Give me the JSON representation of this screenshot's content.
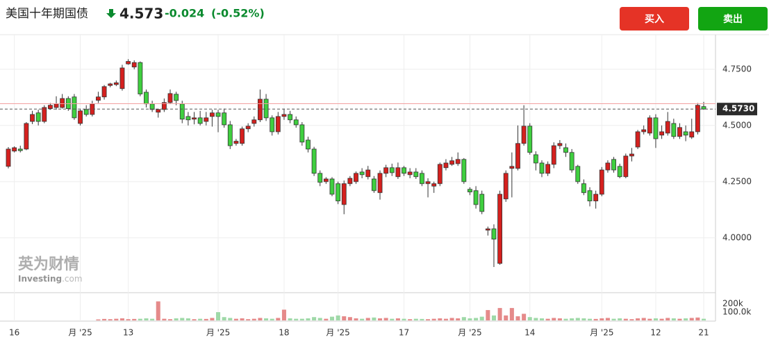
{
  "header": {
    "title": "美国十年期国债",
    "price": "4.573",
    "change": "-0.024",
    "change_pct": "(-0.52%)"
  },
  "buttons": {
    "buy": "买入",
    "sell": "卖出"
  },
  "watermark": {
    "cn": "英为财情",
    "en": "Investing",
    "domain": ".com"
  },
  "chart_data": {
    "type": "candlestick",
    "up_color": "#d5201e",
    "down_color": "#3fcf3f",
    "grid": true,
    "categories": [
      null,
      "16",
      null,
      null,
      null,
      null,
      null,
      null,
      null,
      null,
      null,
      null,
      "月 '25",
      null,
      null,
      null,
      null,
      null,
      null,
      null,
      "13",
      null,
      null,
      null,
      null,
      null,
      null,
      null,
      null,
      null,
      null,
      null,
      null,
      null,
      null,
      "月 '25",
      null,
      null,
      null,
      null,
      null,
      null,
      null,
      null,
      null,
      null,
      "18",
      null,
      null,
      null,
      null,
      null,
      null,
      null,
      null,
      "月 '25",
      null,
      null,
      null,
      null,
      null,
      null,
      null,
      null,
      null,
      null,
      "17",
      null,
      null,
      null,
      null,
      null,
      null,
      null,
      null,
      null,
      null,
      "月 '25",
      null,
      null,
      null,
      null,
      null,
      null,
      null,
      null,
      null,
      "14",
      null,
      null,
      null,
      null,
      null,
      null,
      null,
      null,
      null,
      null,
      null,
      "月 '25",
      null,
      null,
      null,
      null,
      null,
      null,
      null,
      null,
      "12",
      null,
      null,
      null,
      null,
      null,
      null,
      null,
      "21"
    ],
    "open": [
      4.318,
      4.386,
      4.395,
      4.395,
      4.518,
      4.556,
      4.518,
      4.575,
      4.58,
      4.58,
      4.62,
      4.627,
      4.509,
      4.571,
      4.549,
      4.612,
      4.627,
      4.678,
      4.682,
      4.664,
      4.774,
      4.76,
      4.78,
      4.648,
      4.596,
      4.559,
      4.571,
      4.602,
      4.639,
      4.596,
      4.54,
      4.528,
      4.534,
      4.518,
      4.54,
      4.556,
      4.556,
      4.503,
      4.42,
      4.42,
      4.485,
      4.509,
      4.525,
      4.617,
      4.534,
      4.472,
      4.54,
      4.549,
      4.525,
      4.503,
      4.435,
      4.395,
      4.287,
      4.25,
      4.262,
      4.241,
      4.148,
      4.241,
      4.25,
      4.293,
      4.272,
      4.262,
      4.201,
      4.287,
      4.312,
      4.272,
      4.312,
      4.281,
      4.293,
      4.287,
      4.241,
      4.23,
      4.241,
      4.312,
      4.327,
      4.33,
      4.349,
      4.216,
      4.21,
      4.194,
      4.034,
      4.04,
      3.886,
      4.173,
      4.309,
      4.309,
      4.42,
      4.497,
      4.37,
      4.333,
      4.287,
      4.327,
      4.41,
      4.401,
      4.38,
      4.318,
      4.241,
      4.21,
      4.164,
      4.194,
      4.302,
      4.349,
      4.318,
      4.272,
      4.364,
      4.404,
      4.472,
      4.466,
      4.534,
      4.457,
      4.466,
      4.509,
      4.451,
      4.472,
      4.448,
      4.472,
      4.584
    ],
    "high": [
      4.404,
      4.407,
      4.41,
      4.515,
      4.565,
      4.57,
      4.59,
      4.6,
      4.63,
      4.64,
      4.63,
      4.64,
      4.575,
      4.59,
      4.61,
      4.65,
      4.68,
      4.69,
      4.7,
      4.77,
      4.795,
      4.79,
      4.785,
      4.66,
      4.61,
      4.575,
      4.62,
      4.66,
      4.65,
      4.61,
      4.56,
      4.56,
      4.565,
      4.56,
      4.57,
      4.57,
      4.575,
      4.52,
      4.44,
      4.495,
      4.51,
      4.54,
      4.66,
      4.64,
      4.545,
      4.56,
      4.575,
      4.565,
      4.54,
      4.515,
      4.45,
      4.405,
      4.3,
      4.27,
      4.27,
      4.25,
      4.255,
      4.275,
      4.295,
      4.31,
      4.32,
      4.275,
      4.3,
      4.325,
      4.33,
      4.335,
      4.32,
      4.31,
      4.31,
      4.3,
      4.265,
      4.25,
      4.335,
      4.35,
      4.36,
      4.38,
      4.355,
      4.225,
      4.23,
      4.21,
      4.05,
      4.06,
      4.21,
      4.3,
      4.38,
      4.5,
      4.59,
      4.51,
      4.385,
      4.345,
      4.34,
      4.425,
      4.435,
      4.42,
      4.395,
      4.325,
      4.26,
      4.225,
      4.21,
      4.315,
      4.345,
      4.36,
      4.33,
      4.375,
      4.4,
      4.48,
      4.5,
      4.545,
      4.55,
      4.5,
      4.56,
      4.53,
      4.51,
      4.5,
      4.53,
      4.6,
      4.605
    ],
    "low": [
      4.309,
      4.38,
      4.38,
      4.39,
      4.506,
      4.5,
      4.51,
      4.57,
      4.57,
      4.575,
      4.565,
      4.525,
      4.5,
      4.54,
      4.54,
      4.6,
      4.615,
      4.67,
      4.675,
      4.655,
      4.77,
      4.75,
      4.63,
      4.58,
      4.56,
      4.535,
      4.56,
      4.595,
      4.59,
      4.51,
      4.5,
      4.505,
      4.5,
      4.5,
      4.495,
      4.47,
      4.49,
      4.395,
      4.41,
      4.41,
      4.47,
      4.495,
      4.515,
      4.52,
      4.455,
      4.46,
      4.525,
      4.51,
      4.49,
      4.41,
      4.38,
      4.275,
      4.23,
      4.24,
      4.185,
      4.15,
      4.105,
      4.23,
      4.24,
      4.265,
      4.26,
      4.2,
      4.17,
      4.27,
      4.275,
      4.262,
      4.275,
      4.265,
      4.262,
      4.23,
      4.18,
      4.2,
      4.23,
      4.3,
      4.32,
      4.32,
      4.24,
      4.19,
      4.13,
      4.105,
      4.01,
      3.87,
      3.88,
      4.16,
      4.18,
      4.3,
      4.41,
      4.37,
      4.3,
      4.27,
      4.275,
      4.31,
      4.395,
      4.36,
      4.29,
      4.24,
      4.19,
      4.14,
      4.13,
      4.185,
      4.29,
      4.29,
      4.265,
      4.265,
      4.34,
      4.395,
      4.46,
      4.455,
      4.4,
      4.44,
      4.455,
      4.44,
      4.44,
      4.43,
      4.44,
      4.46,
      4.57
    ],
    "close": [
      4.395,
      4.401,
      4.388,
      4.509,
      4.549,
      4.518,
      4.58,
      4.59,
      4.596,
      4.62,
      4.575,
      4.534,
      4.565,
      4.549,
      4.596,
      4.627,
      4.673,
      4.685,
      4.69,
      4.756,
      4.785,
      4.78,
      4.64,
      4.596,
      4.571,
      4.571,
      4.602,
      4.642,
      4.611,
      4.528,
      4.525,
      4.534,
      4.509,
      4.534,
      4.556,
      4.54,
      4.503,
      4.41,
      4.43,
      4.485,
      4.497,
      4.525,
      4.617,
      4.534,
      4.472,
      4.54,
      4.549,
      4.525,
      4.503,
      4.426,
      4.395,
      4.287,
      4.247,
      4.262,
      4.194,
      4.164,
      4.241,
      4.265,
      4.287,
      4.281,
      4.302,
      4.21,
      4.287,
      4.312,
      4.29,
      4.312,
      4.287,
      4.293,
      4.272,
      4.241,
      4.25,
      4.241,
      4.327,
      4.333,
      4.343,
      4.349,
      4.25,
      4.204,
      4.148,
      4.117,
      4.04,
      3.994,
      4.194,
      4.287,
      4.318,
      4.42,
      4.497,
      4.38,
      4.333,
      4.287,
      4.327,
      4.41,
      4.42,
      4.38,
      4.302,
      4.25,
      4.201,
      4.164,
      4.194,
      4.302,
      4.333,
      4.302,
      4.272,
      4.364,
      4.373,
      4.472,
      4.481,
      4.534,
      4.441,
      4.472,
      4.518,
      4.451,
      4.491,
      4.457,
      4.472,
      4.59,
      4.573
    ],
    "ylim": [
      3.762,
      4.904
    ],
    "yticks": [
      {
        "value": 4.0,
        "label": "4.0000"
      },
      {
        "value": 4.25,
        "label": "4.2500"
      },
      {
        "value": 4.5,
        "label": "4.5000"
      },
      {
        "value": 4.75,
        "label": "4.7500"
      }
    ],
    "current_price": {
      "value": 4.573,
      "label": "4.5730"
    },
    "previous_close": 4.597,
    "volume": {
      "up_color": "#e58a8a",
      "down_color": "#9fd9a8",
      "ylim": [
        0,
        310000
      ],
      "yticks": [
        {
          "value": 100000,
          "label": "100.0k"
        },
        {
          "value": 200000,
          "label": "200k"
        }
      ],
      "values": [
        null,
        null,
        null,
        null,
        null,
        null,
        null,
        null,
        null,
        null,
        null,
        null,
        null,
        null,
        null,
        12000,
        18000,
        15000,
        20000,
        25000,
        15000,
        18000,
        20000,
        25000,
        20000,
        230000,
        20000,
        15000,
        25000,
        30000,
        25000,
        15000,
        20000,
        18000,
        30000,
        100000,
        40000,
        30000,
        20000,
        25000,
        15000,
        20000,
        30000,
        25000,
        20000,
        30000,
        130000,
        25000,
        20000,
        20000,
        25000,
        40000,
        30000,
        20000,
        45000,
        60000,
        50000,
        40000,
        25000,
        20000,
        30000,
        35000,
        25000,
        30000,
        20000,
        25000,
        20000,
        15000,
        20000,
        18000,
        15000,
        20000,
        25000,
        20000,
        30000,
        25000,
        40000,
        25000,
        30000,
        45000,
        125000,
        60000,
        150000,
        60000,
        150000,
        50000,
        80000,
        40000,
        30000,
        25000,
        20000,
        30000,
        25000,
        20000,
        25000,
        30000,
        25000,
        20000,
        18000,
        25000,
        30000,
        20000,
        25000,
        20000,
        15000,
        25000,
        30000,
        20000,
        25000,
        20000,
        30000,
        25000,
        20000,
        25000,
        30000,
        35000,
        20000
      ]
    }
  }
}
